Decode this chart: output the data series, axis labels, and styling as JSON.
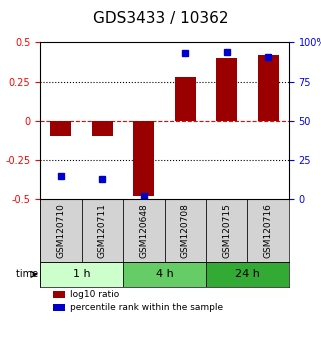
{
  "title": "GDS3433 / 10362",
  "samples": [
    "GSM120710",
    "GSM120711",
    "GSM120648",
    "GSM120708",
    "GSM120715",
    "GSM120716"
  ],
  "log10_ratio": [
    -0.1,
    -0.1,
    -0.48,
    0.28,
    0.4,
    0.42
  ],
  "percentile_rank": [
    15,
    13,
    2,
    93,
    94,
    91
  ],
  "bar_color": "#9B0000",
  "dot_color": "#0000CC",
  "ylim_left": [
    -0.5,
    0.5
  ],
  "ylim_right": [
    0,
    100
  ],
  "yticks_left": [
    -0.5,
    -0.25,
    0,
    0.25,
    0.5
  ],
  "yticks_right": [
    0,
    25,
    50,
    75,
    100
  ],
  "ytick_labels_left": [
    "-0.5",
    "-0.25",
    "0",
    "0.25",
    "0.5"
  ],
  "ytick_labels_right": [
    "0",
    "25",
    "50",
    "75",
    "100%"
  ],
  "hlines": [
    0.25,
    0,
    -0.25
  ],
  "hline_styles": [
    "dotted",
    "dashed",
    "dotted"
  ],
  "hline_colors": [
    "black",
    "red",
    "black"
  ],
  "time_groups": [
    {
      "label": "1 h",
      "samples": [
        "GSM120710",
        "GSM120711"
      ],
      "color": "#ccffcc"
    },
    {
      "label": "4 h",
      "samples": [
        "GSM120648",
        "GSM120708"
      ],
      "color": "#66cc66"
    },
    {
      "label": "24 h",
      "samples": [
        "GSM120715",
        "GSM120716"
      ],
      "color": "#33aa33"
    }
  ],
  "bar_width": 0.5,
  "bg_color": "#ffffff",
  "plot_bg_color": "#ffffff",
  "legend_red_label": "log10 ratio",
  "legend_blue_label": "percentile rank within the sample",
  "time_label": "time",
  "title_fontsize": 11,
  "tick_fontsize": 7,
  "label_fontsize": 7,
  "sample_bg_color": "#d3d3d3",
  "sample_border_color": "#000000"
}
